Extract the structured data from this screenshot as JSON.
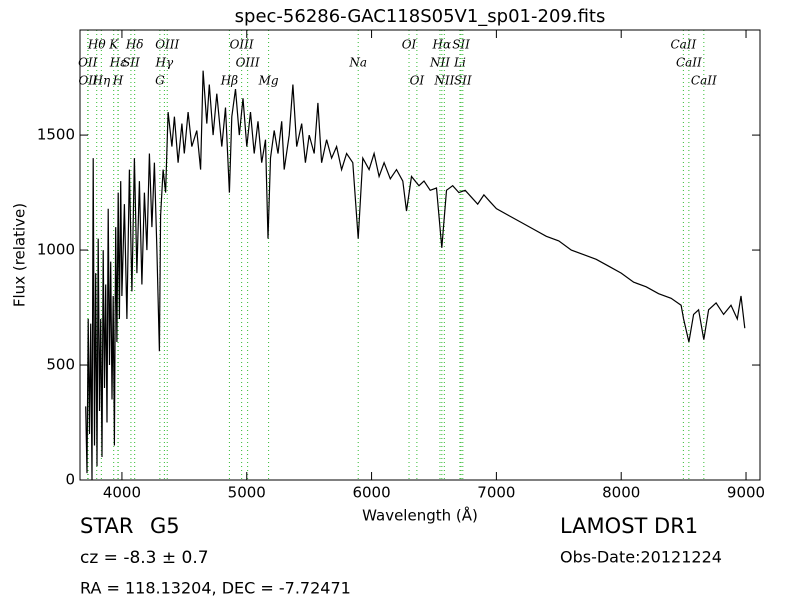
{
  "chart_data": {
    "type": "line",
    "title": "spec-56286-GAC118S05V1_sp01-209.fits",
    "x_label": "Wavelength (Å)",
    "y_label": "Flux (relative)",
    "color": "#000000",
    "line_color": "#33bb33",
    "xlim": [
      3664,
      9112
    ],
    "ylim": [
      0,
      1957
    ],
    "xticks": [
      4000,
      5000,
      6000,
      7000,
      8000,
      9000
    ],
    "yticks": [
      0,
      500,
      1000,
      1500
    ],
    "x": [
      3710,
      3720,
      3730,
      3740,
      3750,
      3760,
      3770,
      3780,
      3790,
      3800,
      3810,
      3820,
      3830,
      3840,
      3850,
      3860,
      3870,
      3880,
      3890,
      3900,
      3910,
      3920,
      3930,
      3940,
      3950,
      3960,
      3970,
      3980,
      3990,
      4000,
      4020,
      4040,
      4060,
      4080,
      4100,
      4120,
      4140,
      4160,
      4180,
      4200,
      4220,
      4240,
      4260,
      4280,
      4300,
      4310,
      4330,
      4350,
      4370,
      4400,
      4420,
      4450,
      4480,
      4500,
      4530,
      4560,
      4600,
      4630,
      4650,
      4680,
      4700,
      4730,
      4760,
      4800,
      4830,
      4861,
      4880,
      4910,
      4940,
      4970,
      5000,
      5030,
      5060,
      5090,
      5120,
      5150,
      5170,
      5190,
      5220,
      5250,
      5280,
      5300,
      5340,
      5370,
      5400,
      5440,
      5470,
      5500,
      5540,
      5570,
      5600,
      5640,
      5680,
      5720,
      5760,
      5800,
      5850,
      5893,
      5930,
      5980,
      6020,
      6060,
      6100,
      6150,
      6200,
      6250,
      6280,
      6320,
      6380,
      6420,
      6470,
      6520,
      6563,
      6600,
      6650,
      6700,
      6750,
      6800,
      6850,
      6900,
      6950,
      7000,
      7100,
      7200,
      7300,
      7400,
      7500,
      7600,
      7700,
      7800,
      7900,
      8000,
      8100,
      8200,
      8300,
      8400,
      8480,
      8500,
      8542,
      8580,
      8620,
      8662,
      8700,
      8760,
      8820,
      8880,
      8930,
      8960,
      8990
    ],
    "values": [
      320,
      30,
      700,
      200,
      680,
      0,
      1400,
      150,
      900,
      60,
      1050,
      300,
      700,
      100,
      1000,
      400,
      850,
      250,
      1180,
      500,
      950,
      350,
      800,
      150,
      1100,
      600,
      1250,
      700,
      1300,
      800,
      1200,
      700,
      1350,
      820,
      1400,
      900,
      1300,
      850,
      1250,
      1000,
      1420,
      1100,
      1380,
      1000,
      560,
      1150,
      1350,
      1250,
      1600,
      1450,
      1580,
      1380,
      1550,
      1420,
      1600,
      1450,
      1520,
      1350,
      1780,
      1550,
      1720,
      1500,
      1680,
      1450,
      1620,
      1250,
      1580,
      1700,
      1500,
      1660,
      1450,
      1600,
      1420,
      1560,
      1380,
      1480,
      1050,
      1400,
      1520,
      1420,
      1560,
      1350,
      1500,
      1720,
      1450,
      1550,
      1380,
      1500,
      1420,
      1640,
      1380,
      1480,
      1400,
      1450,
      1350,
      1420,
      1380,
      1050,
      1400,
      1350,
      1420,
      1320,
      1380,
      1310,
      1350,
      1300,
      1170,
      1320,
      1280,
      1300,
      1260,
      1270,
      1010,
      1260,
      1280,
      1250,
      1260,
      1230,
      1200,
      1240,
      1210,
      1180,
      1150,
      1120,
      1090,
      1060,
      1040,
      1000,
      980,
      960,
      930,
      900,
      860,
      840,
      810,
      790,
      760,
      700,
      600,
      720,
      740,
      610,
      740,
      770,
      720,
      760,
      700,
      800,
      660
    ],
    "lines": [
      {
        "label": "Hθ",
        "wavelength": 3798
      },
      {
        "label": "K",
        "wavelength": 3934
      },
      {
        "label": "Hδ",
        "wavelength": 4102
      },
      {
        "label": "OIII",
        "wavelength": 4363
      },
      {
        "label": "OIII",
        "wavelength": 4959
      },
      {
        "label": "OI",
        "wavelength": 6300
      },
      {
        "label": "Hα",
        "wavelength": 6563
      },
      {
        "label": "SII",
        "wavelength": 6717
      },
      {
        "label": "CaII",
        "wavelength": 8498
      },
      {
        "label": "OII",
        "wavelength": 3726
      },
      {
        "label": "Hε",
        "wavelength": 3970
      },
      {
        "label": "SII",
        "wavelength": 4072
      },
      {
        "label": "Hγ",
        "wavelength": 4340
      },
      {
        "label": "OIII",
        "wavelength": 5007
      },
      {
        "label": "Na",
        "wavelength": 5893
      },
      {
        "label": "NII",
        "wavelength": 6548
      },
      {
        "label": "Li",
        "wavelength": 6708
      },
      {
        "label": "CaII",
        "wavelength": 8542
      },
      {
        "label": "OII",
        "wavelength": 3729
      },
      {
        "label": "Hη",
        "wavelength": 3835
      },
      {
        "label": "H",
        "wavelength": 3968
      },
      {
        "label": "G",
        "wavelength": 4304
      },
      {
        "label": "Hβ",
        "wavelength": 4861
      },
      {
        "label": "Mg",
        "wavelength": 5175
      },
      {
        "label": "OI",
        "wavelength": 6363
      },
      {
        "label": "NII",
        "wavelength": 6583
      },
      {
        "label": "SII",
        "wavelength": 6731
      },
      {
        "label": "CaII",
        "wavelength": 8662
      }
    ]
  },
  "info": {
    "class": "STAR",
    "subclass": "G5",
    "cz": "cz = -8.3 ± 0.7",
    "coords": "RA = 118.13204, DEC = -7.72471",
    "survey": "LAMOST DR1",
    "obs_date": "Obs-Date:20121224"
  }
}
